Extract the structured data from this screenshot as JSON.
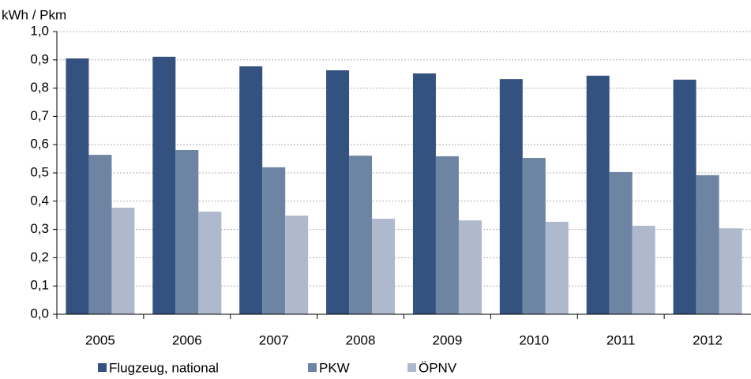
{
  "chart_data": {
    "type": "bar",
    "y_label": "kWh / Pkm",
    "categories": [
      "2005",
      "2006",
      "2007",
      "2008",
      "2009",
      "2010",
      "2011",
      "2012"
    ],
    "series": [
      {
        "name": "Flugzeug, national",
        "color": "#34527f",
        "values": [
          0.905,
          0.911,
          0.877,
          0.863,
          0.852,
          0.832,
          0.844,
          0.83
        ]
      },
      {
        "name": "PKW",
        "color": "#6e84a3",
        "values": [
          0.564,
          0.581,
          0.52,
          0.561,
          0.559,
          0.553,
          0.503,
          0.492
        ]
      },
      {
        "name": "ÖPNV",
        "color": "#aeb9cd",
        "values": [
          0.377,
          0.363,
          0.349,
          0.338,
          0.332,
          0.327,
          0.313,
          0.304
        ]
      }
    ],
    "ylim": [
      0,
      1
    ],
    "yticks": [
      {
        "value": 0,
        "label": "0,0"
      },
      {
        "value": 0.1,
        "label": "0,1"
      },
      {
        "value": 0.2,
        "label": "0,2"
      },
      {
        "value": 0.3,
        "label": "0,3"
      },
      {
        "value": 0.4,
        "label": "0,4"
      },
      {
        "value": 0.5,
        "label": "0,5"
      },
      {
        "value": 0.6,
        "label": "0,6"
      },
      {
        "value": 0.7,
        "label": "0,7"
      },
      {
        "value": 0.8,
        "label": "0,8"
      },
      {
        "value": 0.9,
        "label": "0,9"
      },
      {
        "value": 1,
        "label": "1,0"
      }
    ],
    "grid": true,
    "legend": "bottom"
  }
}
